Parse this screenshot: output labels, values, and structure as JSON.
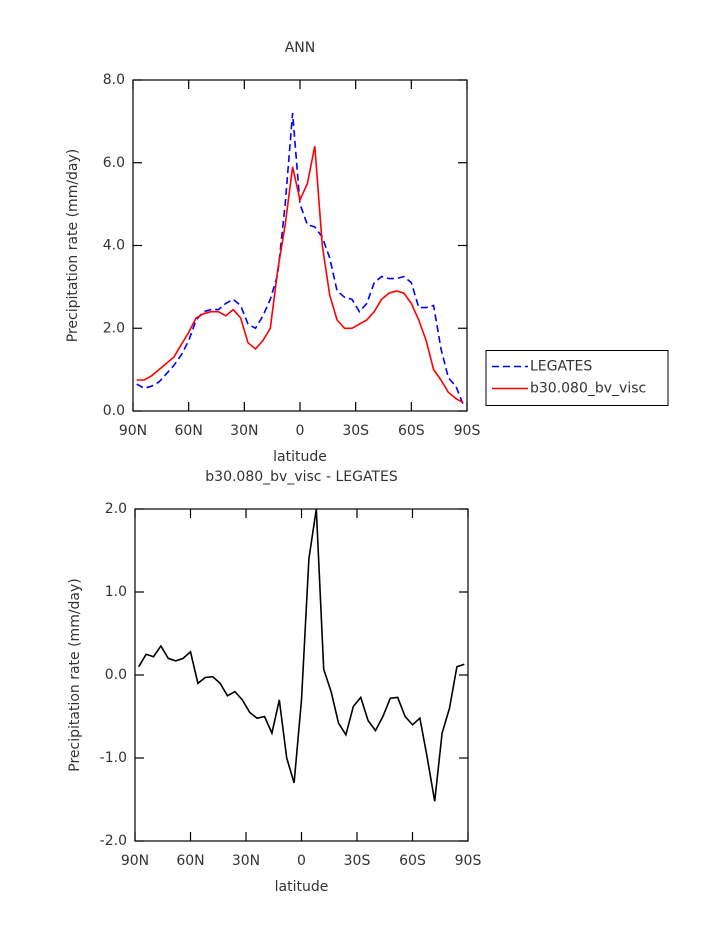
{
  "chart_data": [
    {
      "type": "line",
      "title": "ANN",
      "x_label": "latitude",
      "y_label": "Precipitation rate (mm/day)",
      "x": [
        88,
        84,
        80,
        76,
        72,
        68,
        64,
        60,
        56,
        52,
        48,
        44,
        40,
        36,
        32,
        28,
        24,
        20,
        16,
        12,
        8,
        4,
        0,
        -4,
        -8,
        -12,
        -16,
        -20,
        -24,
        -28,
        -32,
        -36,
        -40,
        -44,
        -48,
        -52,
        -56,
        -60,
        -64,
        -68,
        -72,
        -76,
        -80,
        -84,
        -88
      ],
      "series": [
        {
          "name": "LEGATES",
          "color": "#0000ff",
          "line_style": "dashed",
          "values": [
            0.65,
            0.55,
            0.6,
            0.7,
            0.9,
            1.1,
            1.35,
            1.7,
            2.2,
            2.4,
            2.45,
            2.45,
            2.6,
            2.7,
            2.55,
            2.1,
            2.0,
            2.3,
            2.7,
            3.3,
            5.0,
            7.2,
            5.0,
            4.5,
            4.45,
            4.2,
            3.7,
            2.9,
            2.75,
            2.7,
            2.4,
            2.6,
            3.1,
            3.25,
            3.2,
            3.2,
            3.25,
            3.1,
            2.5,
            2.5,
            2.55,
            1.5,
            0.8,
            0.6,
            0.15
          ]
        },
        {
          "name": "b30.080_bv_visc",
          "color": "#ff0000",
          "line_style": "solid",
          "values": [
            0.75,
            0.75,
            0.85,
            1.0,
            1.15,
            1.3,
            1.6,
            1.9,
            2.25,
            2.35,
            2.4,
            2.4,
            2.3,
            2.45,
            2.25,
            1.65,
            1.5,
            1.7,
            2.0,
            3.4,
            4.5,
            5.9,
            5.1,
            5.5,
            6.4,
            4.0,
            2.8,
            2.2,
            2.0,
            2.0,
            2.1,
            2.2,
            2.4,
            2.7,
            2.85,
            2.9,
            2.85,
            2.6,
            2.2,
            1.7,
            1.0,
            0.75,
            0.45,
            0.3,
            0.2
          ]
        }
      ],
      "xlim": [
        90,
        -90
      ],
      "xticks": [
        {
          "value": 90,
          "label": "90N"
        },
        {
          "value": 60,
          "label": "60N"
        },
        {
          "value": 30,
          "label": "30N"
        },
        0,
        {
          "value": -30,
          "label": "30S"
        },
        {
          "value": -60,
          "label": "60S"
        },
        {
          "value": -90,
          "label": "90S"
        }
      ],
      "ylim": [
        0,
        8
      ],
      "yticks": [
        {
          "value": 0,
          "label": "0.0"
        },
        {
          "value": 2,
          "label": "2.0"
        },
        {
          "value": 4,
          "label": "4.0"
        },
        {
          "value": 6,
          "label": "6.0"
        },
        {
          "value": 8,
          "label": "8.0"
        }
      ],
      "legend": "right"
    },
    {
      "type": "line",
      "title": "b30.080_bv_visc - LEGATES",
      "x_label": "latitude",
      "y_label": "Precipitation rate (mm/day)",
      "x": [
        88,
        84,
        80,
        76,
        72,
        68,
        64,
        60,
        56,
        52,
        48,
        44,
        40,
        36,
        32,
        28,
        24,
        20,
        16,
        12,
        8,
        4,
        0,
        -4,
        -8,
        -12,
        -16,
        -20,
        -24,
        -28,
        -32,
        -36,
        -40,
        -44,
        -48,
        -52,
        -56,
        -60,
        -64,
        -68,
        -72,
        -76,
        -80,
        -84,
        -88
      ],
      "values": [
        0.1,
        0.25,
        0.22,
        0.35,
        0.2,
        0.17,
        0.2,
        0.28,
        -0.1,
        -0.03,
        -0.02,
        -0.1,
        -0.25,
        -0.2,
        -0.3,
        -0.45,
        -0.52,
        -0.5,
        -0.7,
        -0.3,
        -1.0,
        -1.3,
        -0.3,
        1.4,
        2.0,
        0.07,
        -0.2,
        -0.58,
        -0.72,
        -0.38,
        -0.27,
        -0.55,
        -0.67,
        -0.5,
        -0.28,
        -0.27,
        -0.5,
        -0.6,
        -0.52,
        -1.0,
        -1.52,
        -0.7,
        -0.4,
        0.1,
        0.13
      ],
      "color": "#000000",
      "xlim": [
        90,
        -90
      ],
      "xticks": [
        {
          "value": 90,
          "label": "90N"
        },
        {
          "value": 60,
          "label": "60N"
        },
        {
          "value": 30,
          "label": "30N"
        },
        0,
        {
          "value": -30,
          "label": "30S"
        },
        {
          "value": -60,
          "label": "60S"
        },
        {
          "value": -90,
          "label": "90S"
        }
      ],
      "ylim": [
        -2,
        2
      ],
      "yticks": [
        {
          "value": -2,
          "label": "-2.0"
        },
        {
          "value": -1,
          "label": "-1.0"
        },
        {
          "value": 0,
          "label": "0.0"
        },
        {
          "value": 1,
          "label": "1.0"
        },
        {
          "value": 2,
          "label": "2.0"
        }
      ]
    }
  ]
}
